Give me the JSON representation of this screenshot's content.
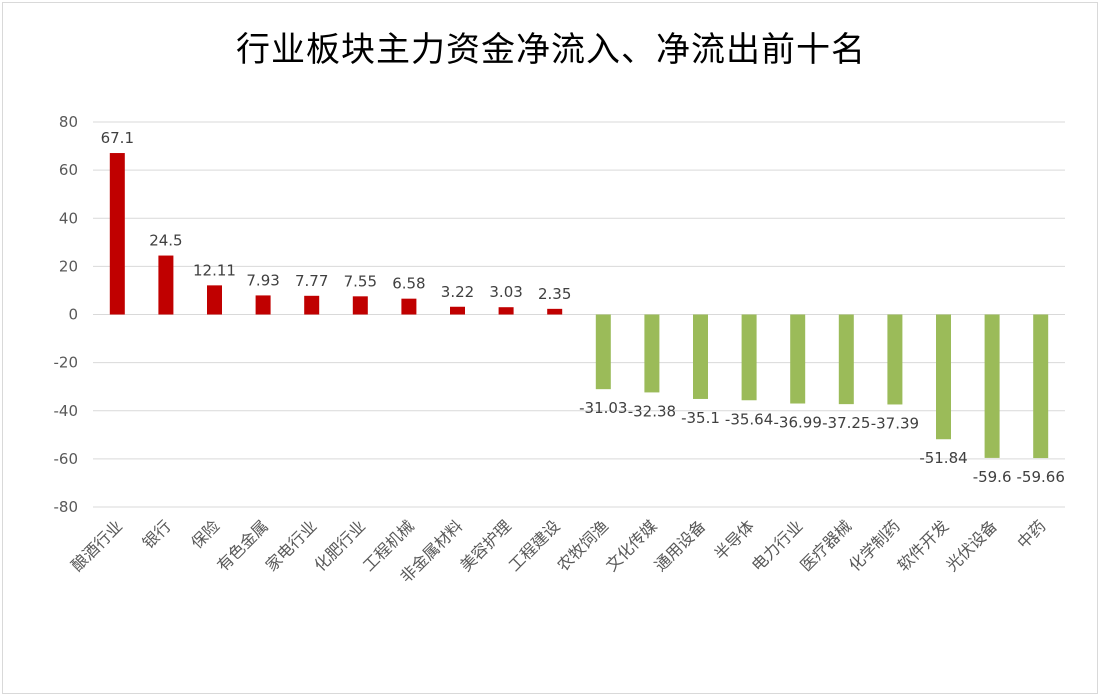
{
  "chart_data": {
    "type": "bar",
    "title": "行业板块主力资金净流入、净流出前十名",
    "xlabel": "",
    "ylabel": "",
    "ylim": [
      -80,
      80
    ],
    "yticks": [
      80,
      60,
      40,
      20,
      0,
      -20,
      -40,
      -60,
      -80
    ],
    "grid": true,
    "legend": "none",
    "categories": [
      "酿酒行业",
      "银行",
      "保险",
      "有色金属",
      "家电行业",
      "化肥行业",
      "工程机械",
      "非金属材料",
      "美容护理",
      "工程建设",
      "农牧饲渔",
      "文化传媒",
      "通用设备",
      "半导体",
      "电力行业",
      "医疗器械",
      "化学制药",
      "软件开发",
      "光伏设备",
      "中药"
    ],
    "values": [
      67.1,
      24.5,
      12.11,
      7.93,
      7.77,
      7.55,
      6.58,
      3.22,
      3.03,
      2.35,
      -31.03,
      -32.38,
      -35.1,
      -35.64,
      -36.99,
      -37.25,
      -37.39,
      -51.84,
      -59.6,
      -59.66
    ],
    "data_labels": [
      "67.1",
      "24.5",
      "12.11",
      "7.93",
      "7.77",
      "7.55",
      "6.58",
      "3.22",
      "3.03",
      "2.35",
      "-31.03",
      "-32.38",
      "-35.1",
      "-35.64",
      "-36.99",
      "-37.25",
      "-37.39",
      "-51.84",
      "-59.6",
      "-59.66"
    ],
    "colors": {
      "positive": "#c00000",
      "negative": "#9bbb59",
      "grid": "#d9d9d9"
    }
  }
}
